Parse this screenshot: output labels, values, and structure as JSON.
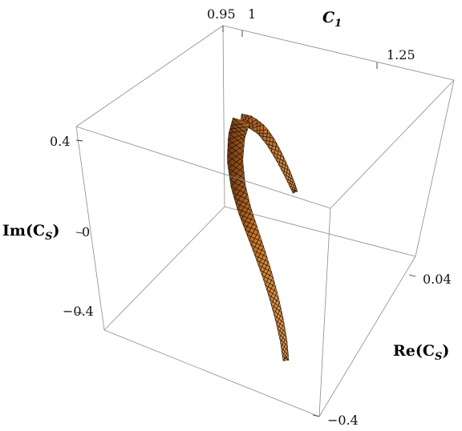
{
  "chart_data": {
    "type": "surface3d",
    "axes": {
      "x": {
        "label_main": "C",
        "label_sub": "1",
        "ticks": [
          {
            "v": 0.95,
            "label": "0.95"
          },
          {
            "v": 1.0,
            "label": "1"
          },
          {
            "v": 1.25,
            "label": "1.25"
          }
        ]
      },
      "y": {
        "label_main": "Re(C",
        "label_sub": "S",
        "label_close": ")",
        "ticks": [
          {
            "v": 0.04,
            "label": "0.04"
          },
          {
            "v": -0.4,
            "label": "−0.4"
          }
        ]
      },
      "z": {
        "label_main": "Im(C",
        "label_sub": "S",
        "label_close": ")",
        "ticks": [
          {
            "v": 0.4,
            "label": "0.4"
          },
          {
            "v": 0,
            "label": "0"
          },
          {
            "v": -0.4,
            "label": "−0.4"
          }
        ]
      }
    },
    "surface": {
      "description_values": "curved sheet spanning C1 about 0.95 to 1.25, Im(CS) from about -0.5 to 0.5",
      "fill_color": "#d8893a",
      "fill_dark": "#8a4a18",
      "mesh_color": "#1a1208"
    },
    "grid": false,
    "box": true
  }
}
